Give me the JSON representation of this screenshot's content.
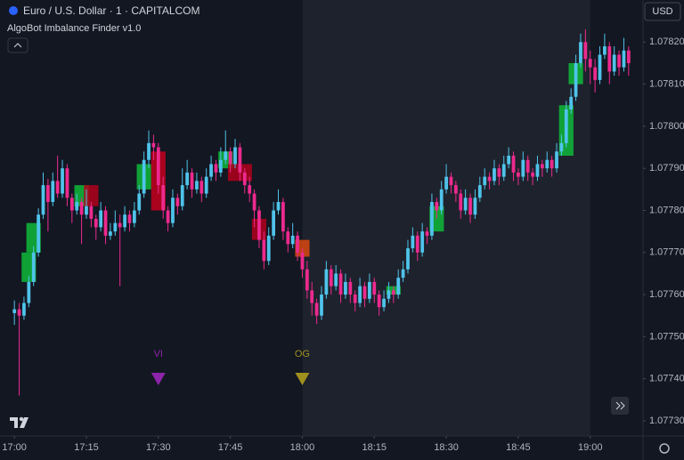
{
  "header": {
    "symbol": "Euro / U.S. Dollar · 1 · CAPITALCOM",
    "indicator": "AlgoBot Imbalance Finder v1.0",
    "currency": "USD"
  },
  "chart_data": {
    "type": "candlestick",
    "up_color": "#4fc3ea",
    "down_color": "#ec2a8e",
    "grid": false,
    "session": {
      "start": "18:00",
      "end": "19:00",
      "color": "#1e222d"
    },
    "xlim": [
      "16:57",
      "19:11"
    ],
    "xticks": [
      "17:00",
      "17:15",
      "17:30",
      "17:45",
      "18:00",
      "18:15",
      "18:30",
      "18:45",
      "19:00"
    ],
    "ylim": [
      1.077264,
      1.0783
    ],
    "yticks": [
      {
        "value": 1.0773,
        "label": "1.07730"
      },
      {
        "value": 1.0774,
        "label": "1.07740"
      },
      {
        "value": 1.0775,
        "label": "1.07750"
      },
      {
        "value": 1.0776,
        "label": "1.07760"
      },
      {
        "value": 1.0777,
        "label": "1.07770"
      },
      {
        "value": 1.0778,
        "label": "1.07780"
      },
      {
        "value": 1.0779,
        "label": "1.07790"
      },
      {
        "value": 1.078,
        "label": "1.07800"
      },
      {
        "value": 1.0781,
        "label": "1.07810"
      },
      {
        "value": 1.0782,
        "label": "1.07820"
      }
    ],
    "x": [
      "17:00",
      "17:01",
      "17:02",
      "17:03",
      "17:04",
      "17:05",
      "17:06",
      "17:07",
      "17:08",
      "17:09",
      "17:10",
      "17:11",
      "17:12",
      "17:13",
      "17:14",
      "17:15",
      "17:16",
      "17:17",
      "17:18",
      "17:19",
      "17:20",
      "17:21",
      "17:22",
      "17:23",
      "17:24",
      "17:25",
      "17:26",
      "17:27",
      "17:28",
      "17:29",
      "17:30",
      "17:31",
      "17:32",
      "17:33",
      "17:34",
      "17:35",
      "17:36",
      "17:37",
      "17:38",
      "17:39",
      "17:40",
      "17:41",
      "17:42",
      "17:43",
      "17:44",
      "17:45",
      "17:46",
      "17:47",
      "17:48",
      "17:49",
      "17:50",
      "17:51",
      "17:52",
      "17:53",
      "17:54",
      "17:55",
      "17:56",
      "17:57",
      "17:58",
      "17:59",
      "18:00",
      "18:01",
      "18:02",
      "18:03",
      "18:04",
      "18:05",
      "18:06",
      "18:07",
      "18:08",
      "18:09",
      "18:10",
      "18:11",
      "18:12",
      "18:13",
      "18:14",
      "18:15",
      "18:16",
      "18:17",
      "18:18",
      "18:19",
      "18:20",
      "18:21",
      "18:22",
      "18:23",
      "18:24",
      "18:25",
      "18:26",
      "18:27",
      "18:28",
      "18:29",
      "18:30",
      "18:31",
      "18:32",
      "18:33",
      "18:34",
      "18:35",
      "18:36",
      "18:37",
      "18:38",
      "18:39",
      "18:40",
      "18:41",
      "18:42",
      "18:43",
      "18:44",
      "18:45",
      "18:46",
      "18:47",
      "18:48",
      "18:49",
      "18:50",
      "18:51",
      "18:52",
      "18:53",
      "18:54",
      "18:55",
      "18:56",
      "18:57",
      "18:58",
      "18:59",
      "19:00",
      "19:01",
      "19:02",
      "19:03",
      "19:04",
      "19:05",
      "19:06",
      "19:07",
      "19:08"
    ],
    "ohlc": [
      [
        1.077556,
        1.077586,
        1.077528,
        1.077565
      ],
      [
        1.077565,
        1.07758,
        1.07736,
        1.07755
      ],
      [
        1.07755,
        1.077595,
        1.07754,
        1.07758
      ],
      [
        1.07758,
        1.077645,
        1.07757,
        1.07763
      ],
      [
        1.07763,
        1.077715,
        1.07762,
        1.0777
      ],
      [
        1.0777,
        1.077805,
        1.07769,
        1.07779
      ],
      [
        1.07779,
        1.07789,
        1.07778,
        1.07786
      ],
      [
        1.07786,
        1.077875,
        1.07775,
        1.07782
      ],
      [
        1.07782,
        1.07789,
        1.07781,
        1.07787
      ],
      [
        1.07787,
        1.07793,
        1.07783,
        1.07784
      ],
      [
        1.07784,
        1.07792,
        1.07783,
        1.0779
      ],
      [
        1.0779,
        1.07791,
        1.07781,
        1.07783
      ],
      [
        1.07783,
        1.07784,
        1.07777,
        1.0778
      ],
      [
        1.0778,
        1.07784,
        1.07779,
        1.07782
      ],
      [
        1.07782,
        1.07783,
        1.07772,
        1.07779
      ],
      [
        1.07779,
        1.07785,
        1.07778,
        1.07781
      ],
      [
        1.07781,
        1.07782,
        1.07776,
        1.07778
      ],
      [
        1.07778,
        1.07779,
        1.07773,
        1.07776
      ],
      [
        1.07776,
        1.07782,
        1.07775,
        1.0778
      ],
      [
        1.0778,
        1.07781,
        1.07772,
        1.07774
      ],
      [
        1.07774,
        1.07777,
        1.07773,
        1.07775
      ],
      [
        1.07775,
        1.0778,
        1.07774,
        1.07777
      ],
      [
        1.07777,
        1.07779,
        1.07762,
        1.07776
      ],
      [
        1.07776,
        1.07781,
        1.07775,
        1.07779
      ],
      [
        1.07779,
        1.0778,
        1.07775,
        1.07777
      ],
      [
        1.07777,
        1.07782,
        1.07776,
        1.0778
      ],
      [
        1.0778,
        1.07786,
        1.07779,
        1.07784
      ],
      [
        1.07784,
        1.07794,
        1.07783,
        1.07792
      ],
      [
        1.07792,
        1.07799,
        1.0779,
        1.07796
      ],
      [
        1.07796,
        1.07798,
        1.07792,
        1.07795
      ],
      [
        1.07795,
        1.07796,
        1.07784,
        1.07786
      ],
      [
        1.07786,
        1.07788,
        1.07778,
        1.0778
      ],
      [
        1.0778,
        1.07781,
        1.07775,
        1.07777
      ],
      [
        1.07777,
        1.07785,
        1.07776,
        1.07783
      ],
      [
        1.07783,
        1.07784,
        1.07779,
        1.07781
      ],
      [
        1.07781,
        1.0779,
        1.0778,
        1.07786
      ],
      [
        1.07786,
        1.07792,
        1.07785,
        1.07789
      ],
      [
        1.07789,
        1.0779,
        1.07783,
        1.07785
      ],
      [
        1.07785,
        1.07789,
        1.07784,
        1.07787
      ],
      [
        1.07787,
        1.07788,
        1.07782,
        1.07784
      ],
      [
        1.07784,
        1.0779,
        1.07783,
        1.07788
      ],
      [
        1.07788,
        1.07793,
        1.07787,
        1.07791
      ],
      [
        1.07791,
        1.07792,
        1.07787,
        1.07789
      ],
      [
        1.07789,
        1.07795,
        1.07788,
        1.07792
      ],
      [
        1.07792,
        1.07799,
        1.07791,
        1.07794
      ],
      [
        1.07794,
        1.07795,
        1.07789,
        1.07791
      ],
      [
        1.07791,
        1.07797,
        1.0779,
        1.07795
      ],
      [
        1.07795,
        1.07796,
        1.07787,
        1.07789
      ],
      [
        1.07789,
        1.0779,
        1.07784,
        1.07786
      ],
      [
        1.07786,
        1.07788,
        1.07782,
        1.07784
      ],
      [
        1.07784,
        1.07785,
        1.07776,
        1.0778
      ],
      [
        1.0778,
        1.07781,
        1.07771,
        1.07773
      ],
      [
        1.07773,
        1.07775,
        1.07766,
        1.07768
      ],
      [
        1.07768,
        1.07776,
        1.07767,
        1.07774
      ],
      [
        1.07774,
        1.07782,
        1.07773,
        1.0778
      ],
      [
        1.0778,
        1.07785,
        1.07779,
        1.07782
      ],
      [
        1.07782,
        1.07783,
        1.07773,
        1.07775
      ],
      [
        1.07775,
        1.07776,
        1.0777,
        1.07772
      ],
      [
        1.07772,
        1.07777,
        1.07771,
        1.07774
      ],
      [
        1.07774,
        1.07775,
        1.07768,
        1.0777
      ],
      [
        1.0777,
        1.07771,
        1.07764,
        1.07766
      ],
      [
        1.07766,
        1.07768,
        1.07759,
        1.07761
      ],
      [
        1.07761,
        1.07763,
        1.07755,
        1.07758
      ],
      [
        1.07758,
        1.07759,
        1.07753,
        1.07755
      ],
      [
        1.07755,
        1.07762,
        1.07754,
        1.0776
      ],
      [
        1.0776,
        1.07768,
        1.07759,
        1.07766
      ],
      [
        1.07766,
        1.07767,
        1.0776,
        1.07762
      ],
      [
        1.07762,
        1.07767,
        1.07761,
        1.07765
      ],
      [
        1.07765,
        1.07766,
        1.07758,
        1.0776
      ],
      [
        1.0776,
        1.07765,
        1.07759,
        1.07763
      ],
      [
        1.07763,
        1.07764,
        1.07758,
        1.0776
      ],
      [
        1.0776,
        1.07761,
        1.07756,
        1.07758
      ],
      [
        1.07758,
        1.07764,
        1.07757,
        1.07762
      ],
      [
        1.07762,
        1.07763,
        1.07757,
        1.07759
      ],
      [
        1.07759,
        1.07765,
        1.07758,
        1.07763
      ],
      [
        1.07763,
        1.07764,
        1.07758,
        1.0776
      ],
      [
        1.0776,
        1.07761,
        1.07755,
        1.07757
      ],
      [
        1.07757,
        1.07761,
        1.07756,
        1.07759
      ],
      [
        1.07759,
        1.07763,
        1.07758,
        1.07761
      ],
      [
        1.07761,
        1.07762,
        1.07758,
        1.0776
      ],
      [
        1.0776,
        1.07766,
        1.07759,
        1.07764
      ],
      [
        1.07764,
        1.07768,
        1.07763,
        1.07766
      ],
      [
        1.07766,
        1.07773,
        1.07765,
        1.07771
      ],
      [
        1.07771,
        1.07776,
        1.0777,
        1.07774
      ],
      [
        1.07774,
        1.07775,
        1.07768,
        1.0777
      ],
      [
        1.0777,
        1.07777,
        1.07769,
        1.07775
      ],
      [
        1.07775,
        1.07776,
        1.07772,
        1.07774
      ],
      [
        1.07774,
        1.07784,
        1.07773,
        1.07782
      ],
      [
        1.07782,
        1.07783,
        1.07778,
        1.0778
      ],
      [
        1.0778,
        1.07787,
        1.07779,
        1.07785
      ],
      [
        1.07785,
        1.07791,
        1.07784,
        1.07788
      ],
      [
        1.07788,
        1.07789,
        1.07784,
        1.07786
      ],
      [
        1.07786,
        1.07787,
        1.07782,
        1.07784
      ],
      [
        1.07784,
        1.07785,
        1.07778,
        1.0778
      ],
      [
        1.0778,
        1.07785,
        1.07779,
        1.07783
      ],
      [
        1.07783,
        1.07784,
        1.07777,
        1.07779
      ],
      [
        1.07779,
        1.07785,
        1.07778,
        1.07783
      ],
      [
        1.07783,
        1.07788,
        1.07782,
        1.07786
      ],
      [
        1.07786,
        1.0779,
        1.07785,
        1.07788
      ],
      [
        1.07788,
        1.07789,
        1.07785,
        1.07787
      ],
      [
        1.07787,
        1.07792,
        1.07786,
        1.0779
      ],
      [
        1.0779,
        1.07791,
        1.07786,
        1.07788
      ],
      [
        1.07788,
        1.07793,
        1.07787,
        1.07791
      ],
      [
        1.07791,
        1.07795,
        1.0779,
        1.07793
      ],
      [
        1.07793,
        1.07794,
        1.07787,
        1.07789
      ],
      [
        1.07789,
        1.0779,
        1.07786,
        1.07788
      ],
      [
        1.07788,
        1.07794,
        1.07787,
        1.07792
      ],
      [
        1.07792,
        1.07793,
        1.07787,
        1.07789
      ],
      [
        1.07789,
        1.0779,
        1.07786,
        1.07788
      ],
      [
        1.07788,
        1.07793,
        1.07787,
        1.07791
      ],
      [
        1.07791,
        1.07792,
        1.07788,
        1.0779
      ],
      [
        1.0779,
        1.07794,
        1.07789,
        1.07792
      ],
      [
        1.07792,
        1.07793,
        1.07788,
        1.0779
      ],
      [
        1.0779,
        1.07796,
        1.07789,
        1.07794
      ],
      [
        1.07794,
        1.07798,
        1.07793,
        1.07796
      ],
      [
        1.07796,
        1.07806,
        1.07795,
        1.07804
      ],
      [
        1.07804,
        1.07809,
        1.07803,
        1.07807
      ],
      [
        1.07807,
        1.07817,
        1.07806,
        1.07815
      ],
      [
        1.07815,
        1.07822,
        1.07814,
        1.0782
      ],
      [
        1.0782,
        1.07823,
        1.07813,
        1.07816
      ],
      [
        1.07816,
        1.07818,
        1.0781,
        1.07814
      ],
      [
        1.07814,
        1.07816,
        1.07808,
        1.07811
      ],
      [
        1.07811,
        1.07819,
        1.0781,
        1.07817
      ],
      [
        1.07817,
        1.07822,
        1.07816,
        1.07819
      ],
      [
        1.07819,
        1.0782,
        1.0781,
        1.07813
      ],
      [
        1.07813,
        1.07819,
        1.07812,
        1.07817
      ],
      [
        1.07817,
        1.07818,
        1.07812,
        1.07814
      ],
      [
        1.07814,
        1.07821,
        1.07813,
        1.07818
      ],
      [
        1.07818,
        1.07819,
        1.07812,
        1.07815
      ]
    ],
    "imbalances": [
      {
        "start": "17:02",
        "end": "17:04",
        "top": 1.0777,
        "bottom": 1.07763,
        "color": "#0fb83a"
      },
      {
        "start": "17:03",
        "end": "17:05",
        "top": 1.07777,
        "bottom": 1.0777,
        "color": "#0fb83a"
      },
      {
        "start": "17:13",
        "end": "17:15",
        "top": 1.07786,
        "bottom": 1.07781,
        "color": "#0fb83a"
      },
      {
        "start": "17:15",
        "end": "17:17",
        "top": 1.07786,
        "bottom": 1.07781,
        "color": "#b3001b"
      },
      {
        "start": "17:26",
        "end": "17:28",
        "top": 1.07791,
        "bottom": 1.07785,
        "color": "#0fb83a"
      },
      {
        "start": "17:29",
        "end": "17:31",
        "top": 1.07794,
        "bottom": 1.0778,
        "color": "#c4001d"
      },
      {
        "start": "17:43",
        "end": "17:45",
        "top": 1.07794,
        "bottom": 1.0779,
        "color": "#0fb83a"
      },
      {
        "start": "17:45",
        "end": "17:49",
        "top": 1.07791,
        "bottom": 1.07787,
        "color": "#b3001b"
      },
      {
        "start": "17:50",
        "end": "17:52",
        "top": 1.07778,
        "bottom": 1.07773,
        "color": "#b3001b"
      },
      {
        "start": "17:59",
        "end": "18:01",
        "top": 1.07773,
        "bottom": 1.07769,
        "color": "#d9480f"
      },
      {
        "start": "18:18",
        "end": "18:20",
        "top": 1.07762,
        "bottom": 1.0776,
        "color": "#0fb83a"
      },
      {
        "start": "18:27",
        "end": "18:29",
        "top": 1.07781,
        "bottom": 1.07775,
        "color": "#0fb83a"
      },
      {
        "start": "18:54",
        "end": "18:56",
        "top": 1.07805,
        "bottom": 1.07793,
        "color": "#0fb83a"
      },
      {
        "start": "18:56",
        "end": "18:58",
        "top": 1.07815,
        "bottom": 1.0781,
        "color": "#0fb83a"
      }
    ],
    "markers": [
      {
        "time": "17:30",
        "label": "VI",
        "color": "#8e24aa"
      },
      {
        "time": "18:00",
        "label": "OG",
        "color": "#a0901e"
      }
    ]
  }
}
